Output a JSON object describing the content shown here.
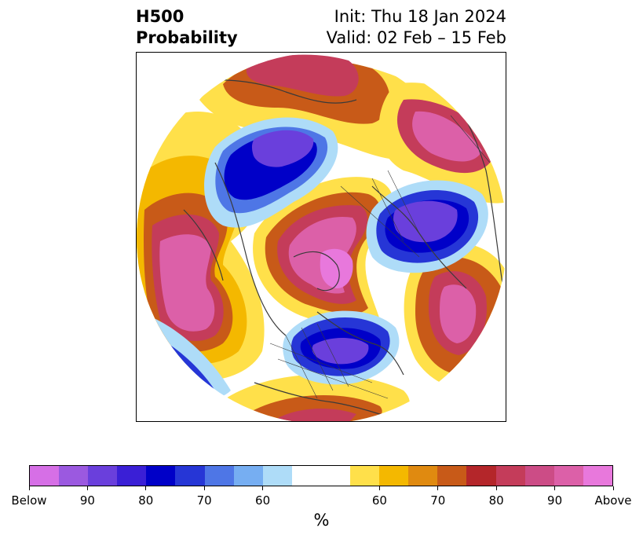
{
  "title": {
    "left_line1": "H500",
    "left_line2": "Probability",
    "right_line1": "Init: Thu 18 Jan 2024",
    "right_line2": "Valid: 02 Feb – 15 Feb"
  },
  "colorbar": {
    "unit": "%",
    "colors": [
      "#d66fe6",
      "#9b59e0",
      "#6a3fdc",
      "#3a1fd6",
      "#0000c8",
      "#2636d6",
      "#4e76e6",
      "#76aef2",
      "#aedcf8",
      "#ffffff",
      "#ffe04a",
      "#f4b800",
      "#e08a10",
      "#c85a18",
      "#b4262a",
      "#c43c5a",
      "#cc4c86",
      "#dc60a8",
      "#e878dc"
    ],
    "ticks": [
      "Below",
      "90",
      "80",
      "70",
      "60",
      "60",
      "70",
      "80",
      "90",
      "Above"
    ]
  }
}
